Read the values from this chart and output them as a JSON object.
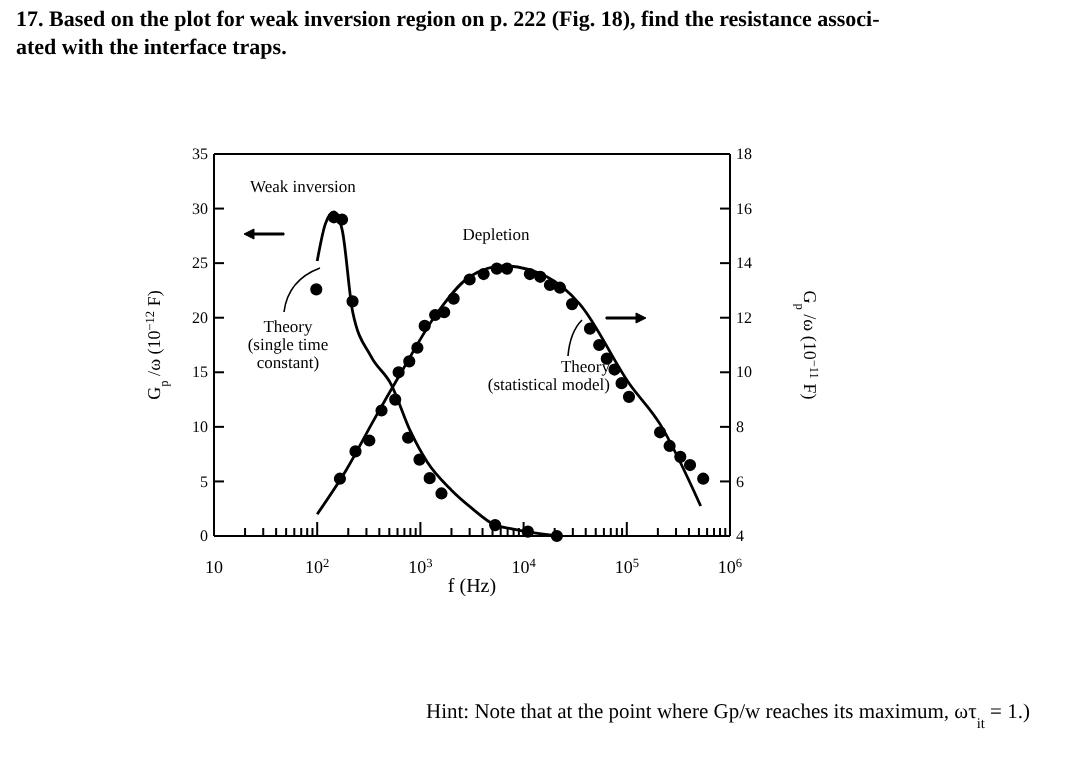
{
  "chart_data": {
    "type": "scatter",
    "title": "17. Based on the plot for weak inversion region on p. 222 (Fig. 18), find the resistance associ-\nated with the interface traps.",
    "xlabel": "f (Hz)",
    "ylabel": "G$_{p}$ /ω (10$^{−12}$ F)",
    "y2label": "G$_{p}$ /ω (10$^{−11}$ F)",
    "log": "x",
    "xlim": [
      10,
      1000000
    ],
    "ylim": [
      0,
      35
    ],
    "y2lim": [
      4,
      18
    ],
    "xticks": [
      10,
      {
        "value": 20,
        "label": null
      },
      {
        "value": 30,
        "label": null
      },
      {
        "value": 40,
        "label": null
      },
      {
        "value": 50,
        "label": null
      },
      {
        "value": 60,
        "label": null
      },
      {
        "value": 70,
        "label": null
      },
      {
        "value": 80,
        "label": null
      },
      {
        "value": 90,
        "label": null
      },
      {
        "value": 100,
        "label": "10$^{2}$"
      },
      {
        "value": 200,
        "label": null
      },
      {
        "value": 300,
        "label": null
      },
      {
        "value": 400,
        "label": null
      },
      {
        "value": 500,
        "label": null
      },
      {
        "value": 600,
        "label": null
      },
      {
        "value": 700,
        "label": null
      },
      {
        "value": 800,
        "label": null
      },
      {
        "value": 900,
        "label": null
      },
      {
        "value": 1000,
        "label": "10$^{3}$"
      },
      {
        "value": 2000,
        "label": null
      },
      {
        "value": 3000,
        "label": null
      },
      {
        "value": 4000,
        "label": null
      },
      {
        "value": 5000,
        "label": null
      },
      {
        "value": 6000,
        "label": null
      },
      {
        "value": 7000,
        "label": null
      },
      {
        "value": 8000,
        "label": null
      },
      {
        "value": 9000,
        "label": null
      },
      {
        "value": 10000,
        "label": "10$^{4}$"
      },
      {
        "value": 20000,
        "label": null
      },
      {
        "value": 30000,
        "label": null
      },
      {
        "value": 40000,
        "label": null
      },
      {
        "value": 50000,
        "label": null
      },
      {
        "value": 60000,
        "label": null
      },
      {
        "value": 70000,
        "label": null
      },
      {
        "value": 80000,
        "label": null
      },
      {
        "value": 90000,
        "label": null
      },
      {
        "value": 100000,
        "label": "10$^{5}$"
      },
      {
        "value": 200000,
        "label": null
      },
      {
        "value": 300000,
        "label": null
      },
      {
        "value": 400000,
        "label": null
      },
      {
        "value": 500000,
        "label": null
      },
      {
        "value": 600000,
        "label": null
      },
      {
        "value": 700000,
        "label": null
      },
      {
        "value": 800000,
        "label": null
      },
      {
        "value": 900000,
        "label": null
      },
      {
        "value": 1000000,
        "label": "10$^{6}$"
      }
    ],
    "yticks": [
      0,
      5,
      10,
      15,
      20,
      25,
      30,
      35
    ],
    "y2ticks": [
      4,
      6,
      8,
      10,
      12,
      14,
      16,
      18
    ],
    "grid": false,
    "series": [
      {
        "name": "Weak inversion",
        "type": "scatter",
        "marker": "circle",
        "color": "#000000",
        "x": [
          98,
          145,
          174,
          220,
          570,
          760,
          980,
          1230,
          1600,
          5300,
          11000,
          21000
        ],
        "values": [
          22.6,
          29.2,
          29.0,
          21.5,
          12.5,
          9.0,
          7.0,
          5.3,
          3.9,
          1.0,
          0.4,
          0
        ]
      },
      {
        "name": "Theory\n(single time\nconstant)",
        "type": "line",
        "line_style": "solid",
        "marker": "none",
        "color": "#000000",
        "x": [
          100,
          120,
          145,
          175,
          220,
          330,
          520,
          800,
          1160,
          2000,
          3100,
          5300,
          7300,
          10800,
          21000
        ],
        "values": [
          25.2,
          28.6,
          29.7,
          28.0,
          20.6,
          16.5,
          13.9,
          9.6,
          6.8,
          4.2,
          2.6,
          1.0,
          0.7,
          0.4,
          0
        ]
      },
      {
        "name": "Depletion",
        "type": "scatter",
        "axis": "y2",
        "marker": "circle",
        "color": "#000000",
        "x": [
          166,
          235,
          320,
          420,
          615,
          780,
          935,
          1100,
          1390,
          1700,
          2100,
          3000,
          4100,
          5500,
          6900,
          11500,
          14500,
          18000,
          22500,
          29500,
          44000,
          54000,
          64000,
          76000,
          89000,
          105000,
          210000,
          260000,
          330000,
          410000,
          550000
        ],
        "values": [
          6.1,
          7.1,
          7.5,
          8.6,
          10.0,
          10.4,
          10.9,
          11.7,
          12.1,
          12.2,
          12.7,
          13.4,
          13.6,
          13.8,
          13.8,
          13.6,
          13.5,
          13.2,
          13.1,
          12.5,
          11.6,
          11.0,
          10.5,
          10.1,
          9.6,
          9.1,
          7.8,
          7.3,
          6.9,
          6.6,
          6.1
        ]
      },
      {
        "name": "Theory\n(statistical model)",
        "type": "line",
        "axis": "y2",
        "line_style": "solid",
        "marker": "none",
        "color": "#000000",
        "x": [
          100,
          190,
          360,
          630,
          1470,
          3000,
          6400,
          16800,
          35000,
          105000,
          210000,
          520000
        ],
        "values": [
          4.8,
          6.4,
          8.3,
          9.9,
          12.2,
          13.5,
          13.9,
          13.5,
          12.5,
          9.6,
          8.1,
          5.1
        ]
      }
    ],
    "annotations": [
      "Hint: Note that at the point where Gp/w reaches its maximum, ωτ$_{it}$ = 1.)"
    ]
  }
}
